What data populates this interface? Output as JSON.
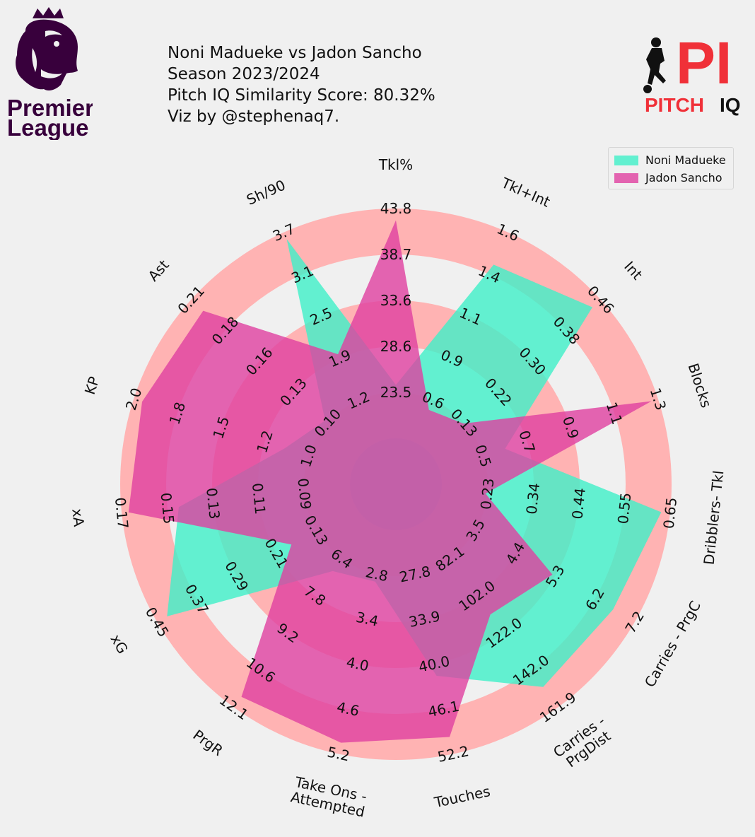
{
  "title": {
    "line1": "Noni Madueke vs Jadon Sancho",
    "line2": "Season 2023/2024",
    "line3": "Pitch IQ Similarity Score: 80.32%",
    "line4": "Viz by @stephenaq7."
  },
  "logos": {
    "left": {
      "icon": "premier-league-lion-icon",
      "line1": "Premier",
      "line2": "League",
      "color": "#38003c"
    },
    "right": {
      "icon": "pitch-iq-player-icon",
      "mark": "PI",
      "word1": "PITCH",
      "word2": "IQ",
      "accent": "#f03038"
    }
  },
  "colors": {
    "background": "#f0f0f0",
    "ring_odd": "#ffb3b3",
    "ring_even": "#f0f0f0",
    "inner_circle": "#9999cc",
    "player_1": "#3ff0c8",
    "player_2": "#e040a0"
  },
  "chart_data": {
    "type": "radar",
    "players": [
      "Noni Madueke",
      "Jadon Sancho"
    ],
    "legend_position": "top-right",
    "params": [
      {
        "label": [
          "Tkl%"
        ],
        "ticks": [
          "23.5",
          "28.6",
          "33.6",
          "38.7",
          "43.8"
        ],
        "min": 18.4,
        "max": 43.8,
        "v1": 24.3,
        "v2": 42.5
      },
      {
        "label": [
          "Tkl+Int"
        ],
        "ticks": [
          "0.6",
          "0.9",
          "1.1",
          "1.4",
          "1.6"
        ],
        "min": 0.3,
        "max": 1.6,
        "v1": 1.4,
        "v2": 0.5
      },
      {
        "label": [
          "Int"
        ],
        "ticks": [
          "0.13",
          "0.22",
          "0.30",
          "0.38",
          "0.46"
        ],
        "min": 0.05,
        "max": 0.46,
        "v1": 0.44,
        "v2": 0.13
      },
      {
        "label": [
          "Blocks"
        ],
        "ticks": [
          "0.5",
          "0.7",
          "0.9",
          "1.1",
          "1.3"
        ],
        "min": 0.3,
        "max": 1.3,
        "v1": 0.6,
        "v2": 1.27
      },
      {
        "label": [
          "Dribblers- Tkl"
        ],
        "ticks": [
          "0.23",
          "0.34",
          "0.44",
          "0.55",
          "0.65"
        ],
        "min": 0.13,
        "max": 0.65,
        "v1": 0.63,
        "v2": 0.23
      },
      {
        "label": [
          "Carries - PrgC"
        ],
        "ticks": [
          "3.5",
          "4.4",
          "5.3",
          "6.2",
          "7.2"
        ],
        "min": 2.6,
        "max": 7.2,
        "v1": 6.7,
        "v2": 5.3
      },
      {
        "label": [
          "Carries -",
          "PrgDist"
        ],
        "ticks": [
          "82.1",
          "102.0",
          "122.0",
          "142.0",
          "161.9"
        ],
        "min": 62.1,
        "max": 161.9,
        "v1": 151.0,
        "v2": 112.0
      },
      {
        "label": [
          "Touches"
        ],
        "ticks": [
          "27.8",
          "33.9",
          "40.0",
          "46.1",
          "52.2"
        ],
        "min": 21.7,
        "max": 52.2,
        "v1": 41.6,
        "v2": 49.9
      },
      {
        "label": [
          "Take Ons -",
          "Attempted"
        ],
        "ticks": [
          "2.8",
          "3.4",
          "4.0",
          "4.6",
          "5.2"
        ],
        "min": 2.2,
        "max": 5.2,
        "v1": 2.9,
        "v2": 5.05
      },
      {
        "label": [
          "PrgR"
        ],
        "ticks": [
          "6.4",
          "7.8",
          "9.2",
          "10.6",
          "12.1"
        ],
        "min": 5.0,
        "max": 12.1,
        "v1": 6.9,
        "v2": 11.7
      },
      {
        "label": [
          "xG"
        ],
        "ticks": [
          "0.13",
          "0.21",
          "0.29",
          "0.37",
          "0.45"
        ],
        "min": 0.05,
        "max": 0.45,
        "v1": 0.43,
        "v2": 0.18
      },
      {
        "label": [
          "xA"
        ],
        "ticks": [
          "0.09",
          "0.11",
          "0.13",
          "0.15",
          "0.17"
        ],
        "min": 0.07,
        "max": 0.17,
        "v1": 0.145,
        "v2": 0.167
      },
      {
        "label": [
          "KP"
        ],
        "ticks": [
          "1.0",
          "1.2",
          "1.5",
          "1.8",
          "2.0"
        ],
        "min": 0.7,
        "max": 2.0,
        "v1": 1.1,
        "v2": 1.95
      },
      {
        "label": [
          "Ast"
        ],
        "ticks": [
          "0.10",
          "0.13",
          "0.16",
          "0.18",
          "0.21"
        ],
        "min": 0.07,
        "max": 0.21,
        "v1": 0.1,
        "v2": 0.2
      },
      {
        "label": [
          "Sh/90"
        ],
        "ticks": [
          "1.2",
          "1.9",
          "2.5",
          "3.1",
          "3.7"
        ],
        "min": 0.6,
        "max": 3.7,
        "v1": 3.6,
        "v2": 1.9
      }
    ]
  }
}
